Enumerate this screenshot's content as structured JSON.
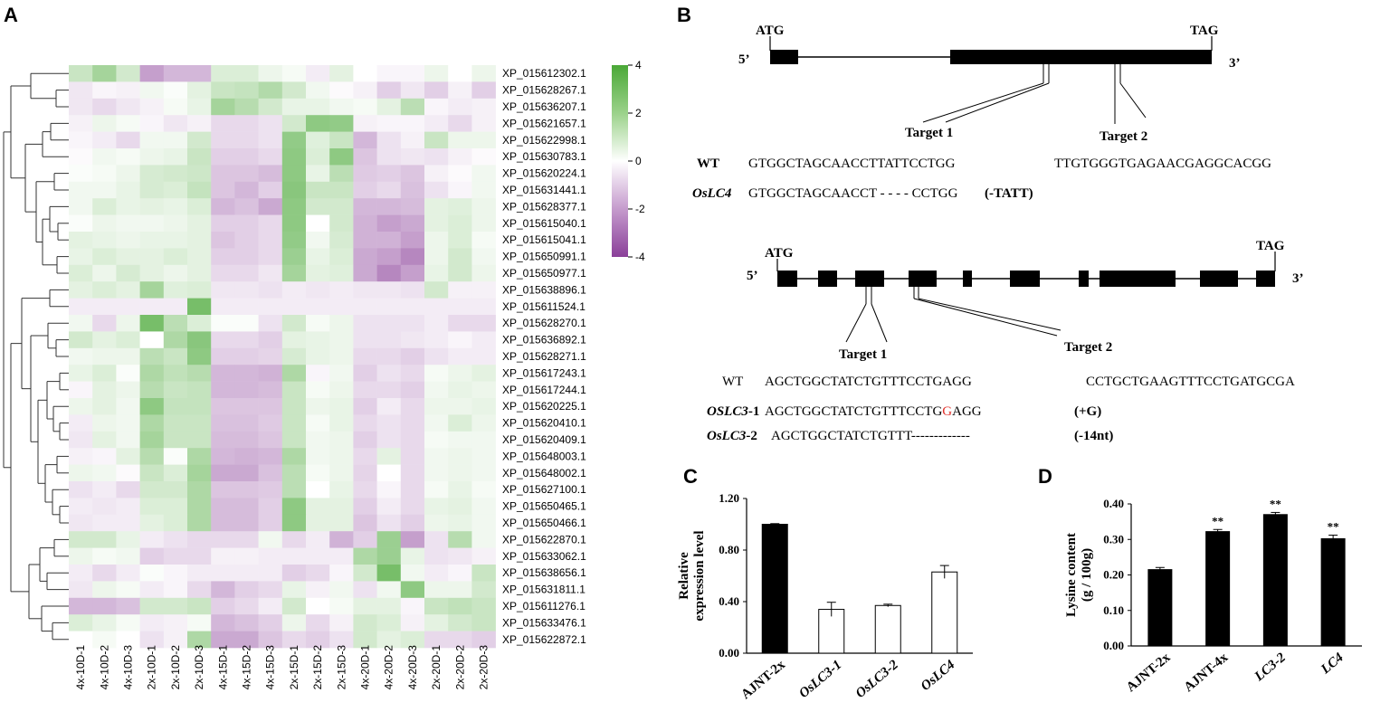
{
  "panels": {
    "a": "A",
    "b": "B",
    "c": "C",
    "d": "D"
  },
  "heatmap": {
    "columns": [
      "4x-10D-1",
      "4x-10D-2",
      "4x-10D-3",
      "2x-10D-1",
      "2x-10D-2",
      "2x-10D-3",
      "4x-15D-1",
      "4x-15D-2",
      "4x-15D-3",
      "2x-15D-1",
      "2x-15D-2",
      "2x-15D-3",
      "4x-20D-1",
      "4x-20D-2",
      "4x-20D-3",
      "2x-20D-1",
      "2x-20D-2",
      "2x-20D-3"
    ],
    "genes": [
      "XP_015612302.1",
      "XP_015628267.1",
      "XP_015636207.1",
      "XP_015621657.1",
      "XP_015622998.1",
      "XP_015630783.1",
      "XP_015620224.1",
      "XP_015631441.1",
      "XP_015628377.1",
      "XP_015615040.1",
      "XP_015615041.1",
      "XP_015650991.1",
      "XP_015650977.1",
      "XP_015638896.1",
      "XP_015611524.1",
      "XP_015628270.1",
      "XP_015636892.1",
      "XP_015628271.1",
      "XP_015617243.1",
      "XP_015617244.1",
      "XP_015620225.1",
      "XP_015620410.1",
      "XP_015620409.1",
      "XP_015648003.1",
      "XP_015648002.1",
      "XP_015627100.1",
      "XP_015650465.1",
      "XP_015650466.1",
      "XP_015622870.1",
      "XP_015633062.1",
      "XP_015638656.1",
      "XP_015631811.1",
      "XP_015611276.1",
      "XP_015633476.1",
      "XP_015622872.1"
    ],
    "values": [
      [
        1.2,
        2.0,
        1.0,
        -2.0,
        -1.5,
        -1.5,
        0.8,
        0.8,
        0.4,
        0.2,
        -0.4,
        0.6,
        0.0,
        -0.2,
        -0.2,
        0.4,
        0.0,
        0.4
      ],
      [
        -0.5,
        -0.2,
        -0.3,
        0.3,
        0.1,
        0.6,
        1.2,
        1.3,
        1.7,
        1.0,
        0.3,
        -0.1,
        -0.3,
        -1.0,
        -0.5,
        -1.0,
        -0.3,
        -1.0
      ],
      [
        -0.5,
        -0.8,
        -0.5,
        -0.3,
        0.2,
        0.5,
        2.0,
        1.6,
        1.0,
        0.5,
        0.5,
        0.3,
        0.2,
        0.6,
        1.5,
        -0.2,
        -0.4,
        -0.3
      ],
      [
        -0.3,
        0.4,
        0.2,
        -0.2,
        -0.5,
        -0.3,
        -0.8,
        -0.8,
        -0.6,
        1.0,
        2.5,
        2.4,
        -0.3,
        -0.2,
        -0.2,
        -0.4,
        -0.8,
        -0.3
      ],
      [
        -0.2,
        -0.4,
        -0.8,
        0.3,
        0.3,
        1.0,
        -0.8,
        -0.8,
        -0.6,
        2.4,
        0.7,
        1.2,
        -1.5,
        -0.6,
        -0.3,
        1.2,
        0.4,
        0.4
      ],
      [
        -0.1,
        0.3,
        0.2,
        0.4,
        0.5,
        1.2,
        -1.0,
        -1.0,
        -0.8,
        2.5,
        0.8,
        2.5,
        -1.2,
        -0.6,
        -0.5,
        -0.6,
        -0.3,
        -0.1
      ],
      [
        0.1,
        0.2,
        0.4,
        0.9,
        1.0,
        1.1,
        -1.2,
        -1.2,
        -1.4,
        2.5,
        0.5,
        1.5,
        -1.1,
        -1.0,
        -1.2,
        -0.3,
        -0.1,
        0.3
      ],
      [
        0.3,
        0.3,
        0.5,
        0.9,
        0.8,
        1.3,
        -1.2,
        -1.5,
        -1.0,
        2.6,
        1.2,
        1.2,
        -1.0,
        -0.8,
        -1.3,
        -0.6,
        -0.2,
        0.3
      ],
      [
        0.3,
        0.8,
        0.5,
        0.6,
        0.5,
        0.8,
        -1.5,
        -1.3,
        -1.8,
        2.5,
        1.0,
        1.0,
        -1.5,
        -1.5,
        -1.4,
        0.6,
        0.7,
        0.4
      ],
      [
        0.1,
        0.4,
        0.3,
        0.3,
        0.4,
        0.6,
        -1.0,
        -1.0,
        -0.8,
        2.5,
        0.0,
        1.0,
        -1.6,
        -2.0,
        -1.8,
        0.6,
        0.8,
        0.4
      ],
      [
        0.6,
        0.5,
        0.4,
        0.5,
        0.5,
        0.6,
        -1.2,
        -1.0,
        -0.8,
        2.4,
        0.3,
        0.9,
        -1.6,
        -1.6,
        -2.0,
        0.4,
        0.8,
        0.2
      ],
      [
        0.5,
        0.8,
        0.6,
        0.6,
        0.8,
        0.6,
        -1.0,
        -1.0,
        -0.8,
        2.2,
        0.5,
        0.8,
        -1.8,
        -2.0,
        -2.5,
        0.4,
        1.0,
        0.3
      ],
      [
        0.8,
        0.4,
        0.9,
        0.6,
        0.4,
        0.6,
        -0.8,
        -0.8,
        -0.5,
        2.0,
        0.6,
        0.7,
        -1.8,
        -2.5,
        -2.0,
        0.5,
        1.0,
        0.4
      ],
      [
        0.6,
        0.8,
        0.6,
        2.0,
        0.7,
        0.8,
        -0.5,
        -0.5,
        -0.6,
        -0.4,
        -0.5,
        -0.4,
        -0.5,
        -0.5,
        -0.6,
        1.0,
        -0.3,
        -0.3
      ],
      [
        -0.4,
        -0.4,
        -0.4,
        -0.4,
        -0.4,
        3.0,
        -0.4,
        -0.4,
        -0.4,
        -0.4,
        -0.4,
        -0.4,
        -0.4,
        -0.4,
        -0.4,
        -0.4,
        -0.4,
        -0.4
      ],
      [
        0.3,
        -0.8,
        0.4,
        3.0,
        1.5,
        0.8,
        0.1,
        0.1,
        -0.6,
        1.0,
        0.2,
        0.4,
        -0.6,
        -0.6,
        -0.6,
        -0.4,
        -0.8,
        -0.8
      ],
      [
        1.0,
        0.6,
        0.8,
        0.0,
        1.8,
        2.6,
        -0.8,
        -0.8,
        -1.0,
        0.6,
        0.5,
        0.4,
        -0.6,
        -0.6,
        -0.5,
        -0.4,
        -0.2,
        -0.4
      ],
      [
        0.3,
        0.4,
        0.4,
        1.5,
        1.2,
        2.5,
        -1.0,
        -1.0,
        -0.9,
        0.9,
        0.5,
        0.4,
        -0.8,
        -0.8,
        -1.0,
        -0.6,
        -0.4,
        -0.4
      ],
      [
        0.5,
        0.8,
        0.1,
        1.8,
        1.4,
        1.6,
        -1.5,
        -1.5,
        -1.6,
        1.8,
        -0.2,
        0.3,
        -1.0,
        -0.6,
        -0.8,
        0.2,
        0.4,
        0.6
      ],
      [
        -0.2,
        0.6,
        0.4,
        1.6,
        1.2,
        1.3,
        -1.5,
        -1.5,
        -1.4,
        1.2,
        0.2,
        0.4,
        -0.8,
        -0.8,
        -1.0,
        0.3,
        0.5,
        0.4
      ],
      [
        0.4,
        0.6,
        0.3,
        2.5,
        1.3,
        1.3,
        -1.2,
        -1.2,
        -1.2,
        1.2,
        0.4,
        0.5,
        -1.0,
        -0.4,
        -0.8,
        0.4,
        0.4,
        0.5
      ],
      [
        -0.4,
        0.4,
        0.3,
        1.8,
        1.2,
        1.2,
        -1.3,
        -1.3,
        -1.1,
        1.2,
        0.2,
        0.5,
        -0.8,
        -0.6,
        -0.8,
        0.3,
        0.8,
        0.4
      ],
      [
        -0.5,
        0.6,
        0.3,
        2.0,
        1.2,
        1.2,
        -1.4,
        -1.4,
        -1.2,
        1.2,
        0.3,
        0.4,
        -1.0,
        -0.6,
        -0.8,
        0.2,
        0.3,
        0.3
      ],
      [
        -0.3,
        -0.2,
        0.6,
        1.6,
        0.1,
        1.8,
        -1.5,
        -1.6,
        -1.5,
        1.8,
        0.3,
        0.4,
        -0.8,
        0.6,
        -0.8,
        0.3,
        0.4,
        0.3
      ],
      [
        0.4,
        0.3,
        -0.1,
        1.2,
        0.8,
        2.0,
        -1.8,
        -1.8,
        -1.3,
        1.5,
        0.2,
        0.4,
        -0.9,
        0.0,
        -0.8,
        0.3,
        0.4,
        0.3
      ],
      [
        -0.6,
        -0.4,
        -0.8,
        1.0,
        1.0,
        1.8,
        -1.2,
        -1.2,
        -1.1,
        1.5,
        0.0,
        0.5,
        -0.8,
        -0.2,
        -0.8,
        0.2,
        0.5,
        0.2
      ],
      [
        -0.4,
        -0.5,
        -0.4,
        0.8,
        0.8,
        1.8,
        -1.4,
        -1.4,
        -1.0,
        2.5,
        0.6,
        0.6,
        -1.0,
        -0.4,
        -0.8,
        0.5,
        0.6,
        0.3
      ],
      [
        -0.5,
        -0.4,
        -0.4,
        0.6,
        0.8,
        1.8,
        -1.4,
        -1.4,
        -1.0,
        2.5,
        0.6,
        0.6,
        -1.2,
        -0.6,
        -1.0,
        0.4,
        0.5,
        0.3
      ],
      [
        1.0,
        1.0,
        0.5,
        -0.4,
        -0.6,
        -0.8,
        -0.8,
        -0.8,
        0.3,
        -0.8,
        -0.4,
        -1.6,
        -1.0,
        2.2,
        -2.0,
        -0.6,
        1.6,
        0.3
      ],
      [
        0.4,
        0.2,
        0.3,
        -1.0,
        -0.8,
        -0.8,
        -0.3,
        -0.3,
        -0.4,
        -0.4,
        -0.4,
        -0.4,
        1.8,
        2.2,
        0.5,
        -0.6,
        -0.5,
        -0.3
      ],
      [
        -0.4,
        -0.8,
        -0.4,
        0.1,
        -0.2,
        -0.4,
        -0.4,
        -0.4,
        -0.4,
        -1.0,
        -0.8,
        -0.2,
        1.0,
        3.0,
        0.3,
        -0.4,
        -0.2,
        1.2
      ],
      [
        -0.5,
        0.4,
        0.2,
        -0.4,
        -0.2,
        -0.8,
        -1.5,
        -1.0,
        -0.8,
        0.5,
        -0.3,
        0.3,
        -0.6,
        0.3,
        2.5,
        0.4,
        0.4,
        1.0
      ],
      [
        -1.5,
        -1.5,
        -1.3,
        1.0,
        1.0,
        1.2,
        -1.0,
        -0.8,
        -0.4,
        1.0,
        0.0,
        0.2,
        0.6,
        0.6,
        -0.2,
        1.2,
        1.4,
        1.2
      ],
      [
        0.8,
        0.5,
        0.2,
        -0.4,
        -0.3,
        0.2,
        -1.5,
        -1.3,
        -1.0,
        0.4,
        -0.8,
        -0.3,
        1.0,
        0.8,
        -0.3,
        0.6,
        1.0,
        1.2
      ],
      [
        0.0,
        0.2,
        0.0,
        -0.6,
        -0.3,
        1.8,
        -1.8,
        -1.8,
        -1.2,
        -0.8,
        -1.0,
        -0.6,
        1.0,
        0.6,
        0.8,
        -0.8,
        -0.8,
        -1.0
      ]
    ],
    "legend_ticks": [
      "4",
      "2",
      "0",
      "-2",
      "-4"
    ]
  },
  "gene_structures": {
    "top": {
      "start": "ATG",
      "stop": "TAG",
      "five": "5’",
      "three": "3’",
      "target1": "Target 1",
      "target2": "Target 2"
    },
    "bottom": {
      "start": "ATG",
      "stop": "TAG",
      "five": "5’",
      "three": "3’",
      "target1": "Target 1",
      "target2": "Target 2"
    }
  },
  "sequences": {
    "lc4_wt_label": "WT",
    "lc4_wt_seq1": "GTGGCTAGCAACCTTATTCCTGG",
    "lc4_wt_seq2": "TTGTGGGTGAGAACGAGGCACGG",
    "lc4_mut_label": "OsLC4",
    "lc4_mut_seq": "GTGGCTAGCAACCT - - - - CCTGG",
    "lc4_mut_note": "(-TATT)",
    "lc3_wt_label": "WT",
    "lc3_wt_seq1": "AGCTGGCTATCTGTTTCCTGAGG",
    "lc3_wt_seq2": "CCTGCTGAAGTTTCCTGATGCGA",
    "lc3_1_label_a": "OSLC3",
    "lc3_1_label_b": "-1",
    "lc3_1_seq_a": "AGCTGGCTATCTGTTTCCTG",
    "lc3_1_insert": "G",
    "lc3_1_seq_b": "AGG",
    "lc3_1_note": "(+G)",
    "lc3_2_label_a": "OsLC3",
    "lc3_2_label_b": "-2",
    "lc3_2_seq": "AGCTGGCTATCTGTTT-------------",
    "lc3_2_note": "(-14nt)",
    "insert_color": "#e0312b"
  },
  "chart_data": [
    {
      "type": "bar",
      "title": "",
      "ylabel": "Relative expression level",
      "ylabel_lines": [
        "Relative",
        "expression level"
      ],
      "categories": [
        "AJNT-2x",
        "OsLC3-1",
        "OsLC3-2",
        "OsLC4"
      ],
      "values": [
        1.0,
        0.34,
        0.37,
        0.63
      ],
      "errors": [
        0.005,
        0.055,
        0.01,
        0.05
      ],
      "fills": [
        "#000000",
        "#ffffff",
        "#ffffff",
        "#ffffff"
      ],
      "ylim": [
        0,
        1.2
      ],
      "yticks": [
        "0.00",
        "0.40",
        "0.80",
        "1.20"
      ],
      "significance": [
        "",
        "",
        "",
        ""
      ]
    },
    {
      "type": "bar",
      "title": "",
      "ylabel": "Lysine content (g / 100g)",
      "ylabel_lines": [
        "Lysine content",
        "(g / 100g)"
      ],
      "categories": [
        "AJNT-2x",
        "AJNT-4x",
        "LC3-2",
        "LC4"
      ],
      "values": [
        0.215,
        0.322,
        0.37,
        0.302
      ],
      "errors": [
        0.006,
        0.006,
        0.006,
        0.01
      ],
      "fills": [
        "#000000",
        "#000000",
        "#000000",
        "#000000"
      ],
      "ylim": [
        0,
        0.4
      ],
      "yticks": [
        "0.00",
        "0.10",
        "0.20",
        "0.30",
        "0.40"
      ],
      "significance": [
        "",
        "**",
        "**",
        "**"
      ]
    }
  ]
}
